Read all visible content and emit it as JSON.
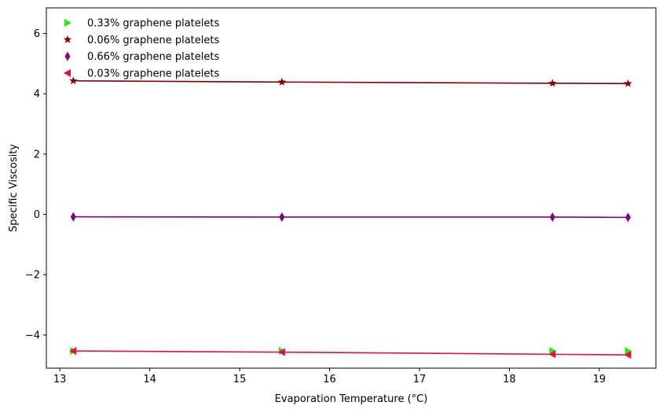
{
  "chart_data": {
    "type": "line",
    "xlabel": "Evaporation Temperature (°C)",
    "ylabel": "Specific Viscosity",
    "xlim": [
      12.85,
      19.63
    ],
    "ylim": [
      -5.1,
      6.85
    ],
    "xticks": [
      13,
      14,
      15,
      16,
      17,
      18,
      19
    ],
    "yticks": [
      -4,
      -2,
      0,
      2,
      4,
      6
    ],
    "ytick_labels": [
      "−4",
      "−2",
      "0",
      "2",
      "4",
      "6"
    ],
    "grid": false,
    "legend_position": "top-left",
    "x": [
      13.15,
      15.47,
      18.48,
      19.32
    ],
    "series": [
      {
        "name": "0.33% graphene platelets",
        "color": "#22ee11",
        "marker": "triangle-right",
        "line": false,
        "values": [
          -4.53,
          -4.53,
          -4.53,
          -4.53
        ]
      },
      {
        "name": "0.06% graphene platelets",
        "color": "#800000",
        "marker": "star",
        "line": true,
        "values": [
          4.43,
          4.39,
          4.35,
          4.34
        ]
      },
      {
        "name": "0.66% graphene platelets",
        "color": "#800080",
        "marker": "thin-diamond",
        "line": true,
        "values": [
          -0.08,
          -0.09,
          -0.09,
          -0.1
        ]
      },
      {
        "name": "0.03% graphene platelets",
        "color": "#dc143c",
        "marker": "triangle-left",
        "line": true,
        "values": [
          -4.53,
          -4.57,
          -4.64,
          -4.66
        ]
      }
    ]
  }
}
